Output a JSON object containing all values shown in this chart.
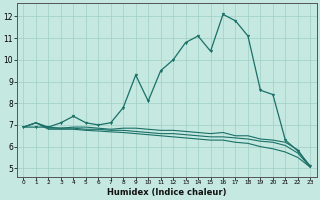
{
  "xlabel": "Humidex (Indice chaleur)",
  "xlim": [
    -0.5,
    23.5
  ],
  "ylim": [
    4.6,
    12.6
  ],
  "xticks": [
    0,
    1,
    2,
    3,
    4,
    5,
    6,
    7,
    8,
    9,
    10,
    11,
    12,
    13,
    14,
    15,
    16,
    17,
    18,
    19,
    20,
    21,
    22,
    23
  ],
  "yticks": [
    5,
    6,
    7,
    8,
    9,
    10,
    11,
    12
  ],
  "bg_color": "#c5e8e0",
  "grid_color": "#9fcfc5",
  "line_color": "#1a7068",
  "jagged": [
    6.9,
    6.9,
    6.9,
    7.1,
    7.4,
    7.1,
    7.0,
    7.1,
    7.8,
    9.3,
    8.1,
    9.5,
    10.0,
    10.8,
    11.1,
    10.4,
    12.1,
    11.8,
    11.1,
    8.6,
    8.4,
    6.3,
    5.8,
    5.1
  ],
  "flat1": [
    6.9,
    7.1,
    6.9,
    6.85,
    6.9,
    6.9,
    6.85,
    6.8,
    6.85,
    6.85,
    6.8,
    6.75,
    6.75,
    6.7,
    6.65,
    6.6,
    6.65,
    6.5,
    6.5,
    6.35,
    6.3,
    6.2,
    5.85,
    5.05
  ],
  "flat2": [
    6.9,
    7.1,
    6.85,
    6.85,
    6.85,
    6.8,
    6.8,
    6.75,
    6.75,
    6.7,
    6.65,
    6.6,
    6.6,
    6.55,
    6.5,
    6.45,
    6.45,
    6.4,
    6.35,
    6.25,
    6.2,
    6.05,
    5.7,
    5.05
  ],
  "flat3": [
    6.9,
    7.1,
    6.8,
    6.8,
    6.8,
    6.75,
    6.72,
    6.68,
    6.65,
    6.6,
    6.55,
    6.5,
    6.45,
    6.4,
    6.35,
    6.3,
    6.3,
    6.2,
    6.15,
    6.0,
    5.9,
    5.75,
    5.5,
    5.05
  ]
}
